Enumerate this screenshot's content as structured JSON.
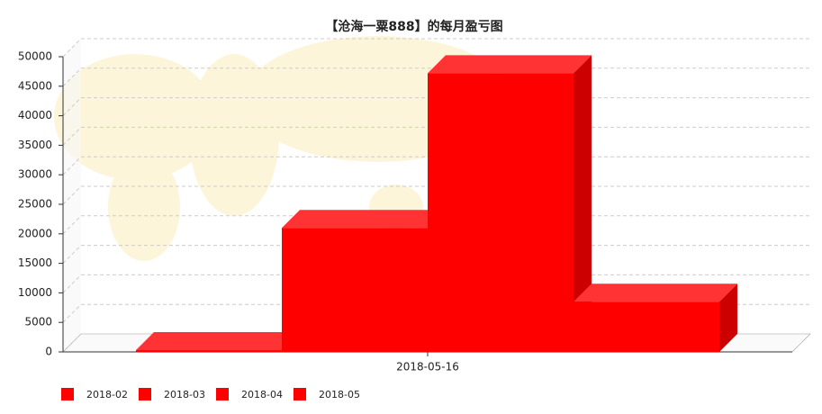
{
  "chart_data": {
    "type": "bar3d",
    "title": "【沧海一粟888】的每月盈亏图",
    "categories": [
      "2018-05-16"
    ],
    "series": [
      {
        "name": "2018-02",
        "color": "#ff0000",
        "values": [
          300
        ]
      },
      {
        "name": "2018-03",
        "color": "#ff0000",
        "values": [
          21000
        ]
      },
      {
        "name": "2018-04",
        "color": "#ff0000",
        "values": [
          47200
        ]
      },
      {
        "name": "2018-05",
        "color": "#ff0000",
        "values": [
          8500
        ]
      }
    ],
    "ylim": [
      0,
      50000
    ],
    "yticks": [
      0,
      5000,
      10000,
      15000,
      20000,
      25000,
      30000,
      35000,
      40000,
      45000,
      50000
    ],
    "grid": true
  }
}
